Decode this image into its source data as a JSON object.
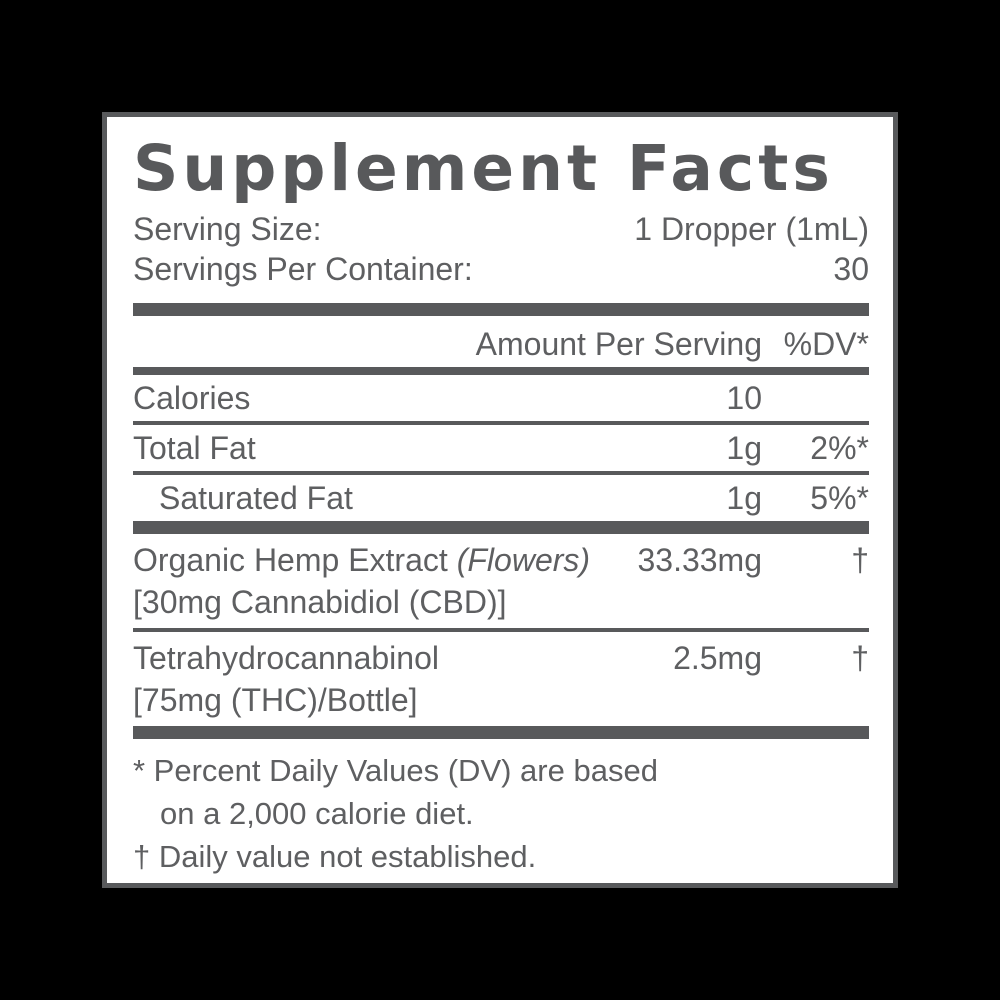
{
  "label": {
    "title": "Supplement Facts",
    "serving": [
      {
        "label": "Serving Size:",
        "value": "1 Dropper (1mL)"
      },
      {
        "label": "Servings Per Container:",
        "value": "30"
      }
    ],
    "header": {
      "amount": "Amount Per Serving",
      "dv": "%DV*"
    },
    "nutrients": [
      {
        "name": "Calories",
        "amount": "10",
        "dv": ""
      },
      {
        "name": "Total Fat",
        "amount": "1g",
        "dv": "2%*"
      },
      {
        "name": "Saturated Fat",
        "amount": "1g",
        "dv": "5%*"
      }
    ],
    "actives": [
      {
        "name": "Organic Hemp Extract",
        "name_suffix": "(Flowers)",
        "amount": "33.33mg",
        "dv": "†",
        "detail": "[30mg Cannabidiol (CBD)]"
      },
      {
        "name": "Tetrahydrocannabinol",
        "name_suffix": "",
        "amount": "2.5mg",
        "dv": "†",
        "detail": "[75mg (THC)/Bottle]"
      }
    ],
    "footnotes": {
      "line1": "* Percent Daily Values (DV) are based",
      "line2": "on a 2,000 calorie diet.",
      "line3": "† Daily value not established."
    },
    "colors": {
      "ink": "#58595b",
      "text": "#5e5f61",
      "panel_bg": "#ffffff",
      "page_bg": "#000000"
    }
  }
}
